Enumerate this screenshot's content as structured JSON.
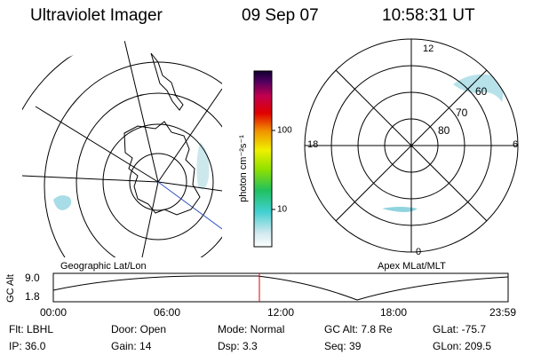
{
  "header": {
    "title": "Ultraviolet Imager",
    "date": "09 Sep 07",
    "time": "10:58:31 UT"
  },
  "colorbar": {
    "label": "photon cm⁻²s⁻¹",
    "ticks": [
      "100",
      "10"
    ]
  },
  "geographic_map": {
    "label": "Geographic Lat/Lon"
  },
  "polar_map": {
    "label": "Apex MLat/MLT",
    "mlt_labels": [
      "12",
      "18",
      "6",
      "0"
    ],
    "lat_labels": [
      "60",
      "70",
      "80"
    ]
  },
  "altitude_plot": {
    "ylabel": "GC Alt",
    "yticks": [
      "9.0",
      "1.8"
    ],
    "xticks": [
      "00:00",
      "06:00",
      "12:00",
      "18:00",
      "23:59"
    ]
  },
  "info": {
    "rows": [
      [
        "Flt: LBHL",
        "Door: Open",
        "Mode: Normal",
        "GC Alt: 7.8 Re",
        "GLat: -75.7"
      ],
      [
        "IP: 36.0",
        "Gain: 14",
        "Dsp:    3.3",
        "Seq: 39",
        "GLon: 209.5"
      ]
    ]
  }
}
